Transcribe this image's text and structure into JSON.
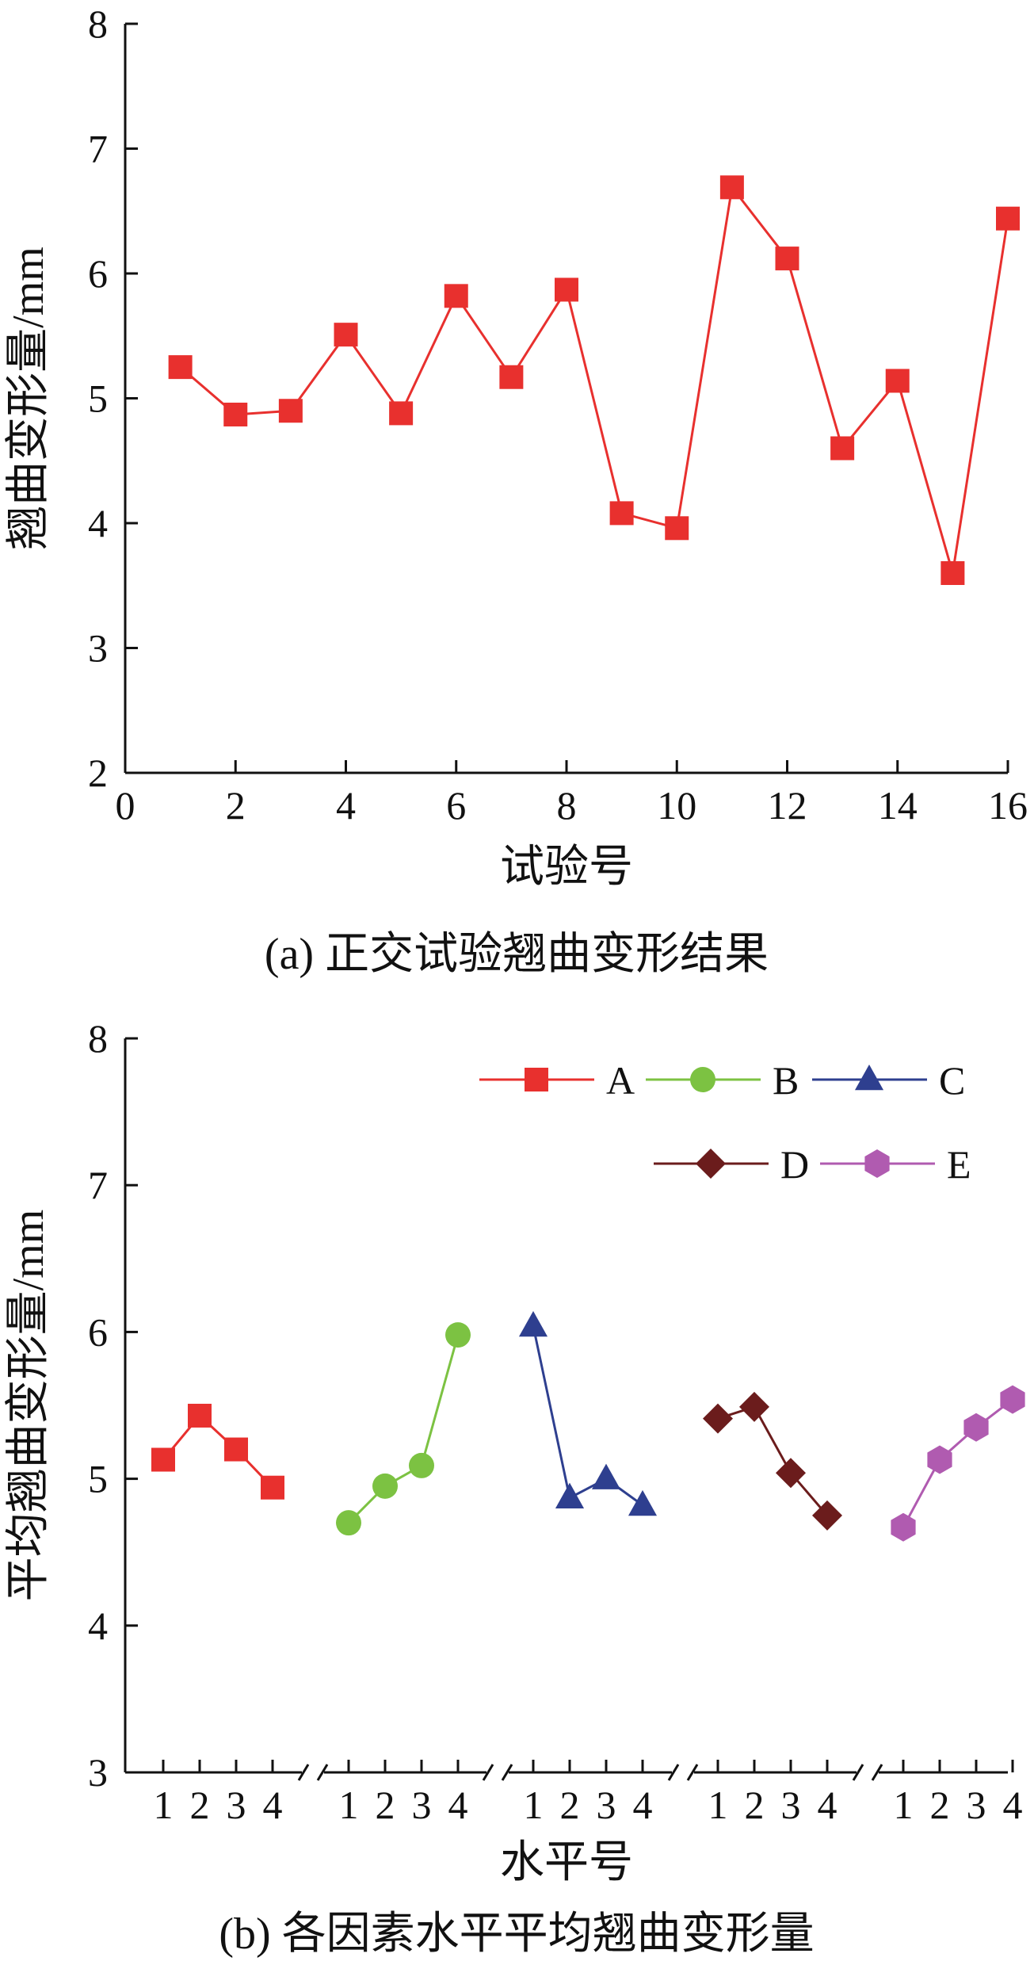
{
  "chart_data": [
    {
      "type": "line",
      "caption": "(a) 正交试验翘曲变形结果",
      "xlabel": "试验号",
      "ylabel": "翘曲变形量/mm",
      "xlim": [
        0,
        16
      ],
      "ylim": [
        2,
        8
      ],
      "xticks": [
        "0",
        "2",
        "4",
        "6",
        "8",
        "10",
        "12",
        "14",
        "16"
      ],
      "yticks": [
        "2",
        "3",
        "4",
        "5",
        "6",
        "7",
        "8"
      ],
      "color": "#e8302e",
      "marker": "square",
      "x": [
        1,
        2,
        3,
        4,
        5,
        6,
        7,
        8,
        9,
        10,
        11,
        12,
        13,
        14,
        15,
        16
      ],
      "values": [
        5.25,
        4.87,
        4.9,
        5.51,
        4.88,
        5.82,
        5.17,
        5.87,
        4.08,
        3.96,
        6.69,
        6.12,
        4.6,
        5.14,
        3.6,
        6.44
      ]
    },
    {
      "type": "line",
      "caption": "(b) 各因素水平平均翘曲变形量",
      "xlabel": "水平号",
      "ylabel": "平均翘曲变形量/mm",
      "ylim": [
        3,
        8
      ],
      "yticks": [
        "3",
        "4",
        "5",
        "6",
        "7",
        "8"
      ],
      "level_labels": [
        "1",
        "2",
        "3",
        "4"
      ],
      "axis_breaks": true,
      "legend_position": "top-right",
      "series": [
        {
          "name": "A",
          "color": "#e8302e",
          "marker": "square",
          "values": [
            5.13,
            5.43,
            5.2,
            4.94
          ]
        },
        {
          "name": "B",
          "color": "#7cc242",
          "marker": "circle",
          "values": [
            4.7,
            4.95,
            5.09,
            5.98
          ]
        },
        {
          "name": "C",
          "color": "#2e3f8f",
          "marker": "triangle",
          "values": [
            6.04,
            4.87,
            5.0,
            4.82
          ]
        },
        {
          "name": "D",
          "color": "#6b1c1c",
          "marker": "diamond",
          "values": [
            5.41,
            5.49,
            5.04,
            4.75
          ]
        },
        {
          "name": "E",
          "color": "#b05bb0",
          "marker": "hexagon",
          "values": [
            4.67,
            5.13,
            5.35,
            5.54
          ]
        }
      ]
    }
  ]
}
